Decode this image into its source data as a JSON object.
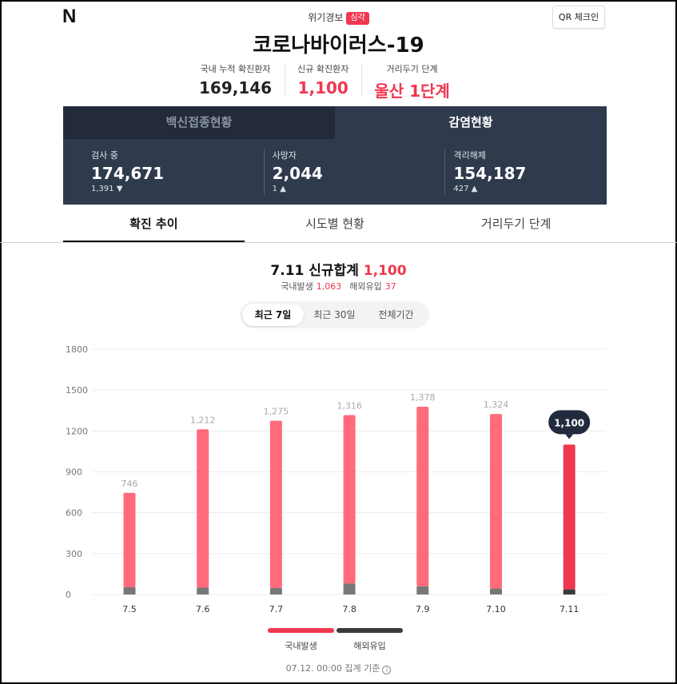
{
  "header": {
    "logo": "N",
    "alert_label": "위기경보",
    "alert_level": "심각",
    "qr_button": "QR 체크인",
    "title": "코로나바이러스-19"
  },
  "summary": [
    {
      "label": "국내 누적 확진환자",
      "value": "169,146",
      "highlight": false
    },
    {
      "label": "신규 확진환자",
      "value": "1,100",
      "highlight": true
    },
    {
      "label": "거리두기 단계",
      "value": "울산 1단계",
      "highlight": true
    }
  ],
  "panel": {
    "tabs": [
      "백신접종현황",
      "감염현황"
    ],
    "active_tab": "감염현황",
    "stats": [
      {
        "label": "검사 중",
        "value": "174,671",
        "delta": "1,391",
        "direction": "down"
      },
      {
        "label": "사망자",
        "value": "2,044",
        "delta": "1",
        "direction": "up"
      },
      {
        "label": "격리해제",
        "value": "154,187",
        "delta": "427",
        "direction": "up"
      }
    ]
  },
  "tabs": [
    "확진 추이",
    "시도별 현황",
    "거리두기 단계"
  ],
  "active_tab": "확진 추이",
  "daily": {
    "title_prefix": "7.11 신규합계",
    "total": "1,100",
    "domestic_label": "국내발생",
    "domestic_value": "1,063",
    "imported_label": "해외유입",
    "imported_value": "37"
  },
  "periods": [
    "최근 7일",
    "최근 30일",
    "전체기간"
  ],
  "active_period": "최근 7일",
  "chart_data": {
    "type": "bar",
    "stacked": true,
    "categories": [
      "7.5",
      "7.6",
      "7.7",
      "7.8",
      "7.9",
      "7.10",
      "7.11"
    ],
    "series": [
      {
        "name": "국내발생",
        "values": [
          693,
          1162,
          1228,
          1236,
          1318,
          1280,
          1063
        ]
      },
      {
        "name": "해외유입",
        "values": [
          53,
          50,
          47,
          80,
          60,
          44,
          37
        ]
      }
    ],
    "totals": [
      "746",
      "1,212",
      "1,275",
      "1,316",
      "1,378",
      "1,324",
      "1,100"
    ],
    "highlight_index": 6,
    "ylim": [
      0,
      1800
    ],
    "yticks": [
      0,
      300,
      600,
      900,
      1200,
      1500,
      1800
    ],
    "colors": {
      "domestic": "#ff6b7a",
      "domestic_highlight": "#f0374f",
      "imported": "#777777",
      "imported_highlight": "#3b3b3b",
      "label": "#aaaaaa",
      "tooltip": "#222b3e"
    },
    "grid": true
  },
  "legend": [
    "국내발생",
    "해외유입"
  ],
  "footnote": "07.12. 00:00 집계 기준"
}
